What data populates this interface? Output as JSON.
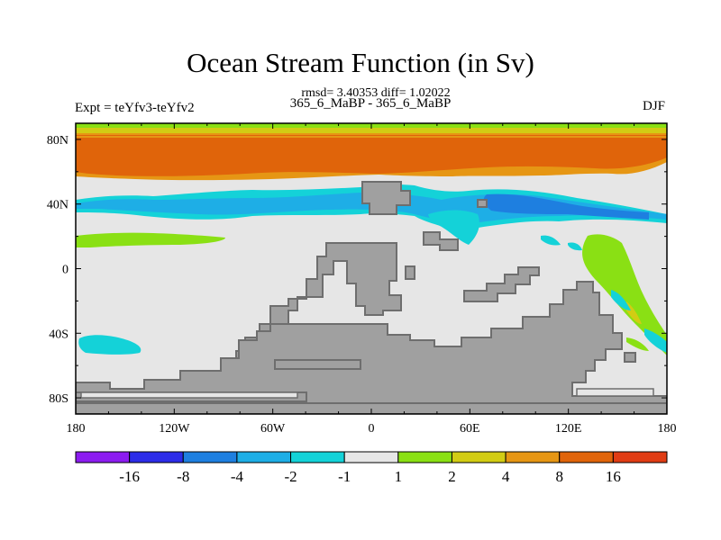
{
  "chart_data": {
    "type": "heatmap",
    "title": "Ocean Stream Function (in Sv)",
    "stats_line": "rmsd= 3.40353 diff= 1.02022",
    "left_label": "Expt = teYfv3-teYfv2",
    "center_label": "365_6_MaBP - 365_6_MaBP",
    "right_label": "DJF",
    "x_ticks": [
      "180",
      "120W",
      "60W",
      "0",
      "60E",
      "120E",
      "180"
    ],
    "y_ticks": [
      "80N",
      "40N",
      "0",
      "40S",
      "80S"
    ],
    "xlim": [
      -180,
      180
    ],
    "ylim": [
      -90,
      90
    ],
    "colorbar": {
      "labels": [
        "-16",
        "-8",
        "-4",
        "-2",
        "-1",
        "1",
        "2",
        "4",
        "8",
        "16"
      ],
      "colors": [
        "#8c1cf0",
        "#2c2ce8",
        "#1e7fe0",
        "#1eaee6",
        "#14d2d8",
        "#e6e6e6",
        "#8ae014",
        "#d2cc14",
        "#e69614",
        "#e0640a",
        "#e03c14"
      ]
    },
    "colors": {
      "land": "#a0a0a0",
      "land_outline": "#6e6e6e",
      "neutral": "#e6e6e6"
    }
  }
}
